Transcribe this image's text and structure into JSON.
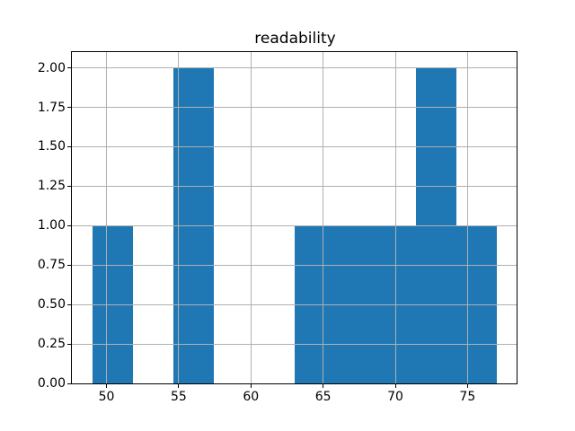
{
  "chart_data": {
    "type": "bar",
    "subtype": "histogram",
    "title": "readability",
    "xlabel": "",
    "ylabel": "",
    "bin_edges": [
      49.0,
      51.8,
      54.6,
      57.4,
      60.2,
      63.0,
      65.8,
      68.6,
      71.4,
      74.2,
      77.0
    ],
    "counts": [
      1,
      0,
      2,
      0,
      0,
      1,
      1,
      1,
      2,
      1
    ],
    "x_ticks": [
      50,
      55,
      60,
      65,
      70,
      75
    ],
    "x_tick_labels": [
      "50",
      "55",
      "60",
      "65",
      "70",
      "75"
    ],
    "y_ticks": [
      0,
      0.25,
      0.5,
      0.75,
      1.0,
      1.25,
      1.5,
      1.75,
      2.0
    ],
    "y_tick_labels": [
      "0.00",
      "0.25",
      "0.50",
      "0.75",
      "1.00",
      "1.25",
      "1.50",
      "1.75",
      "2.00"
    ],
    "xlim": [
      47.6,
      78.4
    ],
    "ylim": [
      0,
      2.1
    ],
    "grid": true,
    "grid_above_bars": true,
    "legend": false,
    "colors": {
      "bar": "#1f77b4",
      "grid": "#b0b0b0",
      "axis": "#000000",
      "background": "#ffffff"
    }
  }
}
